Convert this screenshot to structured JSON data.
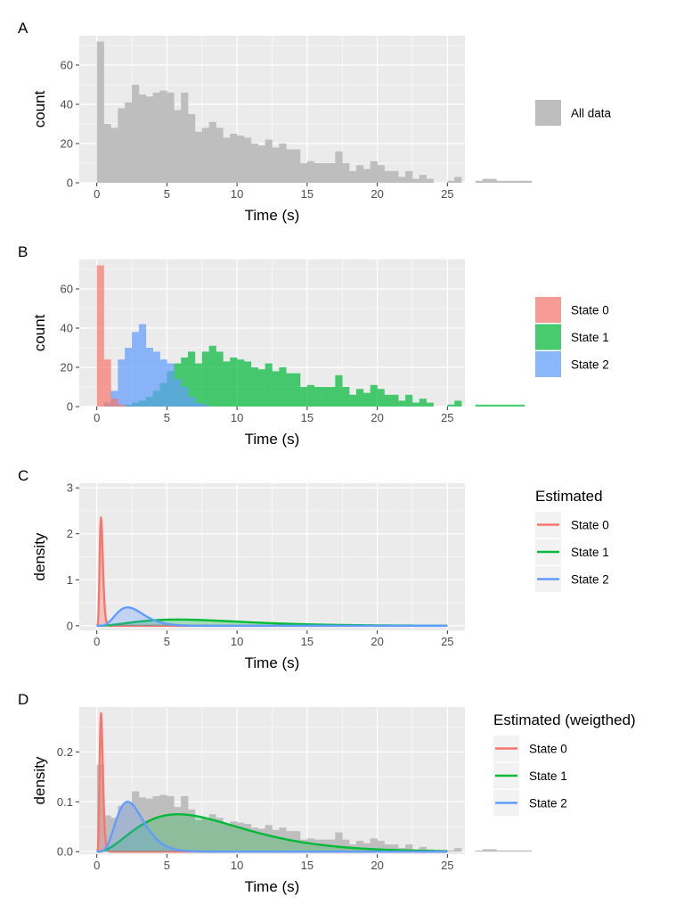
{
  "colors": {
    "panel_bg": "#EBEBEB",
    "grid": "#FFFFFF",
    "all_data": "#BEBEBE",
    "state0": "#F8766D",
    "state1": "#00BA38",
    "state2": "#619CFF",
    "text": "#000000",
    "tick": "#4D4D4D"
  },
  "chart_data": [
    {
      "panel": "A",
      "type": "bar",
      "xlabel": "Time (s)",
      "ylabel": "count",
      "xlim": [
        -1.25,
        26.25
      ],
      "ylim": [
        0,
        75
      ],
      "xticks": [
        0,
        5,
        10,
        15,
        20,
        25
      ],
      "yticks": [
        0,
        20,
        40,
        60
      ],
      "bin_width": 0.5,
      "series": [
        {
          "name": "All data",
          "color_key": "all_data",
          "opacity": 1,
          "bin_start": 0,
          "values": [
            72,
            30,
            28,
            38,
            41,
            50,
            45,
            44,
            46,
            47,
            46,
            37,
            46,
            35,
            26,
            28,
            31,
            28,
            23,
            25,
            24,
            23,
            20,
            19,
            22,
            18,
            20,
            17,
            17,
            10,
            11,
            10,
            10,
            10,
            16,
            10,
            6,
            9,
            7,
            11,
            9,
            6,
            6,
            3,
            6,
            2,
            4,
            2,
            0,
            0,
            1,
            3,
            0,
            0,
            1,
            2,
            2,
            1,
            1,
            1,
            1,
            1,
            0,
            0,
            0,
            0
          ]
        }
      ],
      "legend": {
        "title": "",
        "entries": [
          {
            "label": "All data",
            "color_key": "all_data",
            "kind": "fill"
          }
        ]
      }
    },
    {
      "panel": "B",
      "type": "bar",
      "xlabel": "Time (s)",
      "ylabel": "count",
      "xlim": [
        -1.25,
        26.25
      ],
      "ylim": [
        0,
        75
      ],
      "xticks": [
        0,
        5,
        10,
        15,
        20,
        25
      ],
      "yticks": [
        0,
        20,
        40,
        60
      ],
      "bin_width": 0.5,
      "series": [
        {
          "name": "State 1",
          "color_key": "state1",
          "opacity": 0.7,
          "bin_start": 0,
          "values": [
            0,
            0,
            0,
            0,
            1,
            2,
            3,
            5,
            8,
            12,
            18,
            22,
            25,
            28,
            22,
            28,
            31,
            28,
            23,
            25,
            24,
            23,
            20,
            19,
            22,
            18,
            20,
            17,
            17,
            10,
            11,
            10,
            10,
            10,
            16,
            10,
            6,
            9,
            7,
            11,
            9,
            6,
            6,
            3,
            6,
            2,
            4,
            2,
            0,
            0,
            1,
            3,
            0,
            0,
            1,
            1,
            1,
            1,
            1,
            1,
            1,
            0,
            0,
            0,
            0,
            0
          ]
        },
        {
          "name": "State 2",
          "color_key": "state2",
          "opacity": 0.7,
          "bin_start": 0,
          "values": [
            0,
            2,
            8,
            24,
            30,
            38,
            42,
            30,
            28,
            24,
            22,
            14,
            10,
            5,
            2,
            1,
            0,
            0,
            0,
            0,
            0,
            0,
            0,
            0,
            0,
            0,
            0,
            0,
            0,
            0,
            0,
            0,
            0,
            0,
            0,
            0,
            0,
            0,
            0,
            0,
            0,
            0,
            0,
            0,
            0,
            0,
            0,
            0,
            0,
            0,
            0,
            0,
            0,
            0,
            0,
            0,
            0,
            0,
            0,
            0,
            0,
            0,
            0,
            0,
            0,
            0
          ]
        },
        {
          "name": "State 0",
          "color_key": "state0",
          "opacity": 0.7,
          "bin_start": 0,
          "values": [
            72,
            24,
            4,
            1,
            0,
            0,
            0,
            0,
            0,
            0,
            0,
            0,
            0,
            0,
            0,
            0,
            0,
            0,
            0,
            0,
            0,
            0,
            0,
            0,
            0,
            0,
            0,
            0,
            0,
            0,
            0,
            0,
            0,
            0,
            0,
            0,
            0,
            0,
            0,
            0,
            0,
            0,
            0,
            0,
            0,
            0,
            0,
            0,
            0,
            0,
            0,
            0,
            0,
            0,
            0,
            0,
            0,
            0,
            0,
            0,
            0,
            0,
            0,
            0,
            0,
            0
          ]
        }
      ],
      "legend": {
        "title": "",
        "entries": [
          {
            "label": "State 0",
            "color_key": "state0",
            "kind": "fill"
          },
          {
            "label": "State 1",
            "color_key": "state1",
            "kind": "fill"
          },
          {
            "label": "State 2",
            "color_key": "state2",
            "kind": "fill"
          }
        ]
      }
    },
    {
      "panel": "C",
      "type": "line",
      "xlabel": "Time (s)",
      "ylabel": "density",
      "xlim": [
        -1.25,
        26.25
      ],
      "ylim": [
        -0.1,
        3.1
      ],
      "xticks": [
        0,
        5,
        10,
        15,
        20,
        25
      ],
      "yticks": [
        0,
        1,
        2,
        3
      ],
      "curves": [
        {
          "name": "State 0",
          "color_key": "state0",
          "shape": 8.0,
          "mode": 0.3,
          "peak": 2.36,
          "fill_opacity": 0.35
        },
        {
          "name": "State 1",
          "color_key": "state1",
          "shape": 3.3,
          "mode": 5.8,
          "peak": 0.135,
          "fill_opacity": 0.3
        },
        {
          "name": "State 2",
          "color_key": "state2",
          "shape": 6.0,
          "mode": 2.2,
          "peak": 0.4,
          "fill_opacity": 0.3
        }
      ],
      "legend": {
        "title": "Estimated",
        "entries": [
          {
            "label": "State 0",
            "color_key": "state0",
            "kind": "line"
          },
          {
            "label": "State 1",
            "color_key": "state1",
            "kind": "line"
          },
          {
            "label": "State 2",
            "color_key": "state2",
            "kind": "line"
          }
        ]
      }
    },
    {
      "panel": "D",
      "type": "bar",
      "xlabel": "Time (s)",
      "ylabel": "density",
      "xlim": [
        -1.25,
        26.25
      ],
      "ylim": [
        -0.005,
        0.29
      ],
      "xticks": [
        0,
        5,
        10,
        15,
        20,
        25
      ],
      "yticks": [
        0.0,
        0.1,
        0.2
      ],
      "ytick_labels": [
        "0.0",
        "0.1",
        "0.2"
      ],
      "bin_width": 0.5,
      "histogram_scale": 0.00242,
      "series": [
        {
          "name": "All data",
          "color_key": "all_data",
          "opacity": 1,
          "bin_start": 0,
          "values_from_panel": "A"
        }
      ],
      "curves": [
        {
          "name": "State 0",
          "color_key": "state0",
          "shape": 8.0,
          "mode": 0.3,
          "peak": 0.278,
          "fill_opacity": 0.3
        },
        {
          "name": "State 1",
          "color_key": "state1",
          "shape": 3.3,
          "mode": 5.8,
          "peak": 0.075,
          "fill_opacity": 0.25
        },
        {
          "name": "State 2",
          "color_key": "state2",
          "shape": 6.0,
          "mode": 2.2,
          "peak": 0.1,
          "fill_opacity": 0.25
        }
      ],
      "legend": {
        "title": "Estimated (weigthed)",
        "entries": [
          {
            "label": "State 0",
            "color_key": "state0",
            "kind": "line"
          },
          {
            "label": "State 1",
            "color_key": "state1",
            "kind": "line"
          },
          {
            "label": "State 2",
            "color_key": "state2",
            "kind": "line"
          }
        ]
      }
    }
  ]
}
